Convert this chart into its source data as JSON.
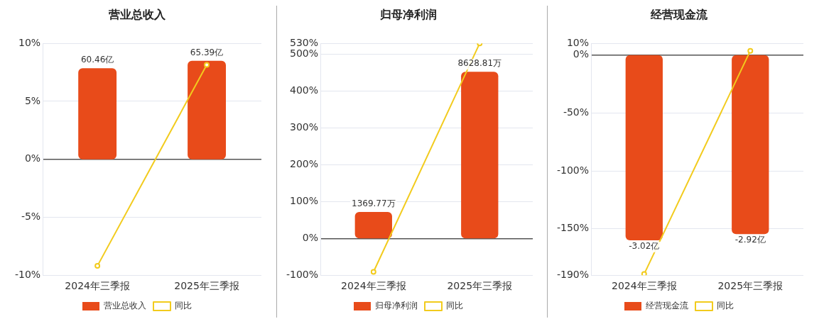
{
  "chart_data": [
    {
      "type": "bar",
      "title": "营业总收入",
      "categories": [
        "2024年三季报",
        "2025年三季报"
      ],
      "series": [
        {
          "name": "营业总收入",
          "axis": "y2",
          "color": "#e84b1a",
          "values": [
            60.46,
            65.39
          ],
          "value_labels": [
            "60.46亿",
            "65.39亿"
          ]
        },
        {
          "name": "同比",
          "type": "line",
          "color": "#f2cb1d",
          "values": [
            -9.2,
            8.15
          ]
        }
      ],
      "ylim": [
        -10,
        10
      ],
      "yticks": [
        {
          "value": -10,
          "label": "-10%"
        },
        {
          "value": -5,
          "label": "-5%"
        },
        {
          "value": 0,
          "label": "0%"
        },
        {
          "value": 5,
          "label": "5%"
        },
        {
          "value": 10,
          "label": "10%"
        }
      ],
      "y2lim": [
        -77,
        77
      ],
      "grid": "y",
      "legend": "bottom",
      "marker": "circle"
    },
    {
      "type": "bar",
      "title": "归母净利润",
      "categories": [
        "2024年三季报",
        "2025年三季报"
      ],
      "series": [
        {
          "name": "归母净利润",
          "axis": "y2",
          "color": "#e84b1a",
          "values": [
            1369.77,
            8628.81
          ],
          "value_labels": [
            "1369.77万",
            "8628.81万"
          ]
        },
        {
          "name": "同比",
          "type": "line",
          "color": "#f2cb1d",
          "values": [
            -91,
            530
          ]
        }
      ],
      "ylim": [
        -100,
        530
      ],
      "yticks": [
        {
          "value": -100,
          "label": "-100%"
        },
        {
          "value": 0,
          "label": "0%"
        },
        {
          "value": 100,
          "label": "100%"
        },
        {
          "value": 200,
          "label": "200%"
        },
        {
          "value": 300,
          "label": "300%"
        },
        {
          "value": 400,
          "label": "400%"
        },
        {
          "value": 500,
          "label": "500%"
        },
        {
          "value": 530,
          "label": "530%"
        }
      ],
      "y2lim": [
        -1905,
        10096
      ],
      "grid": "y",
      "legend": "bottom",
      "marker": "circle"
    },
    {
      "type": "bar",
      "title": "经营现金流",
      "categories": [
        "2024年三季报",
        "2025年三季报"
      ],
      "series": [
        {
          "name": "经营现金流",
          "axis": "y2",
          "color": "#e84b1a",
          "values": [
            -3.02,
            -2.92
          ],
          "value_labels": [
            "-3.02亿",
            "-2.92亿"
          ]
        },
        {
          "name": "同比",
          "type": "line",
          "color": "#f2cb1d",
          "values": [
            -189,
            3.6
          ]
        }
      ],
      "ylim": [
        -190,
        10
      ],
      "yticks": [
        {
          "value": -190,
          "label": "-190%"
        },
        {
          "value": -150,
          "label": "-150%"
        },
        {
          "value": -100,
          "label": "-100%"
        },
        {
          "value": -50,
          "label": "-50%"
        },
        {
          "value": 0,
          "label": "0%"
        },
        {
          "value": 10,
          "label": "10%"
        }
      ],
      "y2lim": [
        -3.59,
        0.19
      ],
      "grid": "y",
      "legend": "bottom",
      "marker": "circle"
    }
  ]
}
